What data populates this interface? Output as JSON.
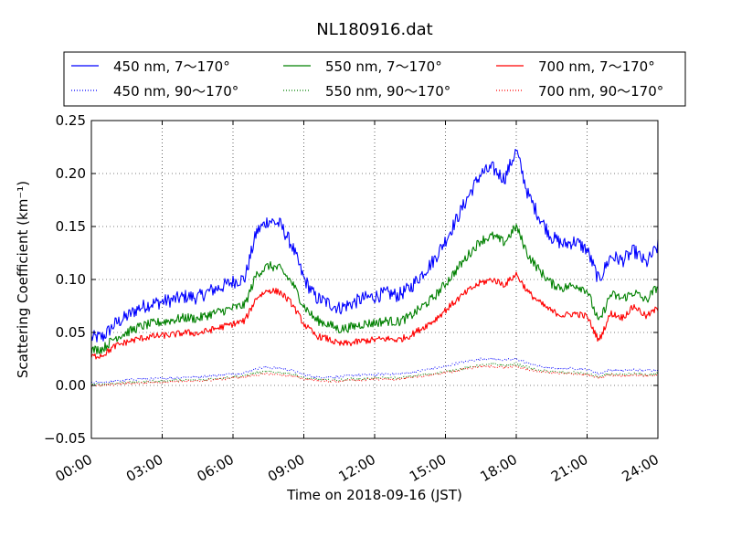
{
  "chart_data": {
    "type": "line",
    "title": "NL180916.dat",
    "xlabel": "Time on 2018-09-16 (JST)",
    "ylabel": "Scattering Coefficient (km⁻¹)",
    "xlim": [
      0,
      24
    ],
    "ylim": [
      -0.05,
      0.25
    ],
    "grid": true,
    "legend_placement": "top, above plot, 3 columns",
    "xticks": [
      {
        "value": 0,
        "label": "00:00"
      },
      {
        "value": 3,
        "label": "03:00"
      },
      {
        "value": 6,
        "label": "06:00"
      },
      {
        "value": 9,
        "label": "09:00"
      },
      {
        "value": 12,
        "label": "12:00"
      },
      {
        "value": 15,
        "label": "15:00"
      },
      {
        "value": 18,
        "label": "18:00"
      },
      {
        "value": 21,
        "label": "21:00"
      },
      {
        "value": 24,
        "label": "24:00"
      }
    ],
    "yticks": [
      {
        "value": -0.05,
        "label": "−0.05"
      },
      {
        "value": 0.0,
        "label": "0.00"
      },
      {
        "value": 0.05,
        "label": "0.05"
      },
      {
        "value": 0.1,
        "label": "0.10"
      },
      {
        "value": 0.15,
        "label": "0.15"
      },
      {
        "value": 0.2,
        "label": "0.20"
      },
      {
        "value": 0.25,
        "label": "0.25"
      }
    ],
    "x": [
      0,
      0.5,
      1,
      1.5,
      2,
      2.5,
      3,
      3.5,
      4,
      4.5,
      5,
      5.5,
      6,
      6.5,
      7,
      7.5,
      8,
      8.5,
      9,
      9.5,
      10,
      10.5,
      11,
      11.5,
      12,
      12.5,
      13,
      13.5,
      14,
      14.5,
      15,
      15.5,
      16,
      16.5,
      17,
      17.5,
      18,
      18.5,
      19,
      19.5,
      20,
      20.5,
      21,
      21.5,
      22,
      22.5,
      23,
      23.5,
      24
    ],
    "series": [
      {
        "name": "450 nm, 7～170°",
        "color": "#0000ff",
        "style": "solid",
        "values": [
          0.045,
          0.046,
          0.058,
          0.065,
          0.073,
          0.077,
          0.079,
          0.081,
          0.084,
          0.083,
          0.089,
          0.093,
          0.098,
          0.101,
          0.145,
          0.156,
          0.152,
          0.132,
          0.101,
          0.083,
          0.078,
          0.073,
          0.077,
          0.082,
          0.084,
          0.087,
          0.085,
          0.092,
          0.105,
          0.118,
          0.137,
          0.158,
          0.18,
          0.2,
          0.205,
          0.195,
          0.222,
          0.18,
          0.158,
          0.14,
          0.133,
          0.136,
          0.128,
          0.099,
          0.122,
          0.118,
          0.127,
          0.115,
          0.131
        ]
      },
      {
        "name": "450 nm, 90～170°",
        "color": "#0000ff",
        "style": "dotted",
        "values": [
          0.003,
          0.003,
          0.004,
          0.005,
          0.006,
          0.006,
          0.007,
          0.007,
          0.008,
          0.008,
          0.009,
          0.01,
          0.011,
          0.012,
          0.016,
          0.017,
          0.016,
          0.014,
          0.01,
          0.008,
          0.008,
          0.008,
          0.009,
          0.01,
          0.01,
          0.011,
          0.011,
          0.012,
          0.014,
          0.016,
          0.018,
          0.021,
          0.023,
          0.025,
          0.025,
          0.024,
          0.025,
          0.021,
          0.018,
          0.016,
          0.016,
          0.016,
          0.015,
          0.011,
          0.015,
          0.014,
          0.015,
          0.014,
          0.015
        ]
      },
      {
        "name": "550 nm, 7～170°",
        "color": "#008000",
        "style": "solid",
        "values": [
          0.033,
          0.035,
          0.045,
          0.05,
          0.055,
          0.058,
          0.06,
          0.062,
          0.064,
          0.063,
          0.067,
          0.07,
          0.073,
          0.076,
          0.105,
          0.113,
          0.11,
          0.097,
          0.075,
          0.062,
          0.058,
          0.053,
          0.055,
          0.058,
          0.059,
          0.061,
          0.06,
          0.065,
          0.074,
          0.083,
          0.096,
          0.11,
          0.124,
          0.137,
          0.141,
          0.135,
          0.15,
          0.123,
          0.108,
          0.096,
          0.092,
          0.095,
          0.09,
          0.059,
          0.086,
          0.082,
          0.088,
          0.08,
          0.094
        ]
      },
      {
        "name": "550 nm, 90～170°",
        "color": "#008000",
        "style": "dotted",
        "values": [
          0.001,
          0.001,
          0.002,
          0.003,
          0.003,
          0.004,
          0.004,
          0.005,
          0.005,
          0.005,
          0.006,
          0.007,
          0.008,
          0.009,
          0.012,
          0.013,
          0.012,
          0.011,
          0.007,
          0.006,
          0.005,
          0.005,
          0.006,
          0.006,
          0.007,
          0.007,
          0.007,
          0.008,
          0.01,
          0.011,
          0.013,
          0.015,
          0.017,
          0.019,
          0.02,
          0.019,
          0.02,
          0.017,
          0.014,
          0.013,
          0.012,
          0.012,
          0.011,
          0.008,
          0.011,
          0.01,
          0.011,
          0.01,
          0.011
        ]
      },
      {
        "name": "700 nm, 7～170°",
        "color": "#ff0000",
        "style": "solid",
        "values": [
          0.027,
          0.029,
          0.037,
          0.041,
          0.044,
          0.046,
          0.047,
          0.048,
          0.05,
          0.049,
          0.052,
          0.055,
          0.058,
          0.061,
          0.083,
          0.09,
          0.088,
          0.077,
          0.058,
          0.047,
          0.044,
          0.039,
          0.04,
          0.042,
          0.043,
          0.044,
          0.043,
          0.047,
          0.054,
          0.061,
          0.071,
          0.081,
          0.09,
          0.097,
          0.1,
          0.095,
          0.105,
          0.088,
          0.078,
          0.07,
          0.066,
          0.068,
          0.065,
          0.042,
          0.068,
          0.064,
          0.075,
          0.065,
          0.073
        ]
      },
      {
        "name": "700 nm, 90～170°",
        "color": "#ff0000",
        "style": "dotted",
        "values": [
          0.0,
          0.0,
          0.001,
          0.002,
          0.002,
          0.003,
          0.003,
          0.004,
          0.004,
          0.004,
          0.005,
          0.006,
          0.007,
          0.008,
          0.01,
          0.011,
          0.01,
          0.009,
          0.006,
          0.005,
          0.004,
          0.004,
          0.005,
          0.005,
          0.006,
          0.006,
          0.006,
          0.007,
          0.009,
          0.01,
          0.012,
          0.014,
          0.016,
          0.018,
          0.018,
          0.017,
          0.018,
          0.015,
          0.013,
          0.012,
          0.011,
          0.011,
          0.01,
          0.007,
          0.01,
          0.009,
          0.01,
          0.009,
          0.01
        ]
      }
    ]
  }
}
